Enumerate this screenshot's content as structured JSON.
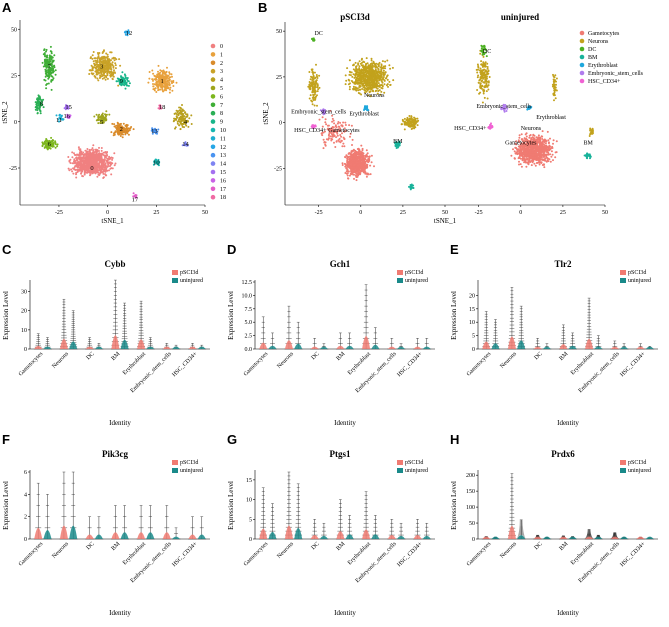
{
  "panels": {
    "A": {
      "letter": "A",
      "xlabel": "tSNE_1",
      "ylabel": "tSNE_2",
      "xticks": [
        "-25",
        "0",
        "25",
        "50"
      ],
      "yticks": [
        "50",
        "25",
        "0",
        "-25"
      ],
      "legend": [
        "0",
        "1",
        "2",
        "3",
        "4",
        "5",
        "6",
        "7",
        "8",
        "9",
        "10",
        "11",
        "12",
        "13",
        "14",
        "15",
        "16",
        "17",
        "18"
      ]
    },
    "B": {
      "letter": "B",
      "titles": [
        "pSCI3d",
        "uninjured"
      ],
      "xlabel": "tSNE_1",
      "ylabel": "tSNE_2",
      "xticks": [
        "-25",
        "0",
        "25",
        "50"
      ],
      "yticks": [
        "50",
        "25",
        "0",
        "-25"
      ],
      "legend": [
        "Gametocytes",
        "Neurons",
        "DC",
        "BM",
        "Erythroblast",
        "Embryonic_stem_cells",
        "HSC_CD34+"
      ],
      "left_labels": [
        "DC",
        "Neurons",
        "Embryonic_stem_cells",
        "Erythroblast",
        "HSC_CD34+",
        "Gametocytes",
        "BM"
      ],
      "right_labels": [
        "DC",
        "Embryonic_stem_cells",
        "Erythroblast",
        "HSC_CD34+",
        "Neurons",
        "Gametocytes",
        "BM"
      ]
    },
    "violin_common": {
      "xlabel": "Identity",
      "ylabel": "Expression Level",
      "identities": [
        "Gametocytes",
        "Neurons",
        "DC",
        "BM",
        "Erythroblast",
        "Embryonic_stem_cells",
        "HSC_CD34+"
      ],
      "legend": [
        "pSCI3d",
        "uninjured"
      ]
    }
  },
  "colors": {
    "clusters": [
      "#f08080",
      "#e8a13c",
      "#d98b2b",
      "#c9a227",
      "#b8a01e",
      "#9ea51c",
      "#7cb61d",
      "#3fae36",
      "#2aaf55",
      "#18b58a",
      "#16b6b0",
      "#1eaed0",
      "#26a6e6",
      "#4a93f0",
      "#7e84f2",
      "#a46ff0",
      "#c862e6",
      "#e35dc8",
      "#f06ba3"
    ],
    "celltypes": [
      "#f07b72",
      "#c2a21c",
      "#4cb022",
      "#18b29a",
      "#1ea7dc",
      "#b07ced",
      "#f062d3"
    ],
    "pSCI3d": "#f07b72",
    "uninjured": "#1a8a8a"
  },
  "chart_data": [
    {
      "type": "scatter",
      "panel": "A",
      "title": "",
      "xlabel": "tSNE_1",
      "ylabel": "tSNE_2",
      "xlim": [
        -45,
        50
      ],
      "ylim": [
        -45,
        55
      ],
      "cluster_labels": [
        {
          "label": "0",
          "x": -8,
          "y": -25
        },
        {
          "label": "1",
          "x": 28,
          "y": 22
        },
        {
          "label": "2",
          "x": 7,
          "y": -4
        },
        {
          "label": "3",
          "x": -3,
          "y": 30
        },
        {
          "label": "4",
          "x": 40,
          "y": 0
        },
        {
          "label": "5",
          "x": -3,
          "y": 0
        },
        {
          "label": "6",
          "x": -30,
          "y": -12
        },
        {
          "label": "7",
          "x": -30,
          "y": 30
        },
        {
          "label": "8",
          "x": -34,
          "y": 10
        },
        {
          "label": "9",
          "x": 7,
          "y": 22
        },
        {
          "label": "10",
          "x": 25,
          "y": -22
        },
        {
          "label": "11",
          "x": -25,
          "y": 1
        },
        {
          "label": "12",
          "x": 11,
          "y": 48
        },
        {
          "label": "13",
          "x": 24,
          "y": -5
        },
        {
          "label": "14",
          "x": 40,
          "y": -12
        },
        {
          "label": "15",
          "x": -20,
          "y": 8
        },
        {
          "label": "16",
          "x": -21,
          "y": 3
        },
        {
          "label": "17",
          "x": 14,
          "y": -42
        },
        {
          "label": "18",
          "x": 28,
          "y": 8
        }
      ]
    },
    {
      "type": "scatter",
      "panel": "B",
      "groups": [
        "pSCI3d",
        "uninjured"
      ],
      "xlabel": "tSNE_1",
      "ylabel": "tSNE_2",
      "xlim": [
        -45,
        50
      ],
      "ylim": [
        -45,
        55
      ],
      "series": [
        "Gametocytes",
        "Neurons",
        "DC",
        "BM",
        "Erythroblast",
        "Embryonic_stem_cells",
        "HSC_CD34+"
      ]
    },
    {
      "type": "violin",
      "panel": "C",
      "title": "Cybb",
      "ylabel": "Expression Level",
      "xlabel": "Identity",
      "ylim": [
        0,
        35
      ],
      "yticks": [
        0,
        10,
        20,
        30
      ],
      "categories": [
        "Gametocytes",
        "Neurons",
        "DC",
        "BM",
        "Erythroblast",
        "Embryonic_stem_cells",
        "HSC_CD34+"
      ],
      "series": [
        {
          "name": "pSCI3d",
          "max": [
            8,
            26,
            6,
            36,
            25,
            3,
            3
          ]
        },
        {
          "name": "uninjured",
          "max": [
            6,
            20,
            3,
            24,
            6,
            2,
            2
          ]
        }
      ]
    },
    {
      "type": "violin",
      "panel": "D",
      "title": "Gch1",
      "ylabel": "Expression Level",
      "xlabel": "Identity",
      "ylim": [
        0,
        12.5
      ],
      "yticks": [
        0,
        2.5,
        5.0,
        7.5,
        10.0,
        12.5
      ],
      "categories": [
        "Gametocytes",
        "Neurons",
        "DC",
        "BM",
        "Erythroblast",
        "Embryonic_stem_cells",
        "HSC_CD34+"
      ],
      "series": [
        {
          "name": "pSCI3d",
          "max": [
            6,
            8,
            2,
            3,
            12,
            2,
            2
          ]
        },
        {
          "name": "uninjured",
          "max": [
            3,
            5,
            1,
            3,
            4,
            1,
            2
          ]
        }
      ]
    },
    {
      "type": "violin",
      "panel": "E",
      "title": "Tlr2",
      "ylabel": "Expression Level",
      "xlabel": "Identity",
      "ylim": [
        0,
        25
      ],
      "yticks": [
        0,
        5,
        10,
        15,
        20
      ],
      "categories": [
        "Gametocytes",
        "Neurons",
        "DC",
        "BM",
        "Erythroblast",
        "Embryonic_stem_cells",
        "HSC_CD34+"
      ],
      "series": [
        {
          "name": "pSCI3d",
          "max": [
            14,
            23,
            4,
            9,
            19,
            3,
            2
          ]
        },
        {
          "name": "uninjured",
          "max": [
            11,
            16,
            2,
            6,
            5,
            2,
            1
          ]
        }
      ]
    },
    {
      "type": "violin",
      "panel": "F",
      "title": "Pik3cg",
      "ylabel": "Expression Level",
      "xlabel": "Identity",
      "ylim": [
        0,
        6
      ],
      "yticks": [
        0,
        2,
        4,
        6
      ],
      "categories": [
        "Gametocytes",
        "Neurons",
        "DC",
        "BM",
        "Erythroblast",
        "Embryonic_stem_cells",
        "HSC_CD34+"
      ],
      "series": [
        {
          "name": "pSCI3d",
          "max": [
            5,
            6,
            2,
            3,
            3,
            3,
            2
          ]
        },
        {
          "name": "uninjured",
          "max": [
            4,
            6,
            2,
            3,
            3,
            1,
            2
          ]
        }
      ]
    },
    {
      "type": "violin",
      "panel": "G",
      "title": "Ptgs1",
      "ylabel": "Expression Level",
      "xlabel": "Identity",
      "ylim": [
        0,
        17
      ],
      "yticks": [
        0,
        5,
        10,
        15
      ],
      "categories": [
        "Gametocytes",
        "Neurons",
        "DC",
        "BM",
        "Erythroblast",
        "Embryonic_stem_cells",
        "HSC_CD34+"
      ],
      "series": [
        {
          "name": "pSCI3d",
          "max": [
            13,
            17,
            5,
            10,
            12,
            5,
            5
          ]
        },
        {
          "name": "uninjured",
          "max": [
            9,
            14,
            4,
            6,
            6,
            4,
            4
          ]
        }
      ]
    },
    {
      "type": "violin",
      "panel": "H",
      "title": "Prdx6",
      "ylabel": "Expression Level",
      "xlabel": "Identity",
      "ylim": [
        0,
        210
      ],
      "yticks": [
        0,
        50,
        100,
        150,
        200
      ],
      "categories": [
        "Gametocytes",
        "Neurons",
        "DC",
        "BM",
        "Erythroblast",
        "Embryonic_stem_cells",
        "HSC_CD34+"
      ],
      "series": [
        {
          "name": "pSCI3d",
          "max": [
            8,
            205,
            12,
            10,
            30,
            20,
            6
          ]
        },
        {
          "name": "uninjured",
          "max": [
            6,
            60,
            6,
            8,
            12,
            6,
            4
          ]
        }
      ]
    }
  ]
}
